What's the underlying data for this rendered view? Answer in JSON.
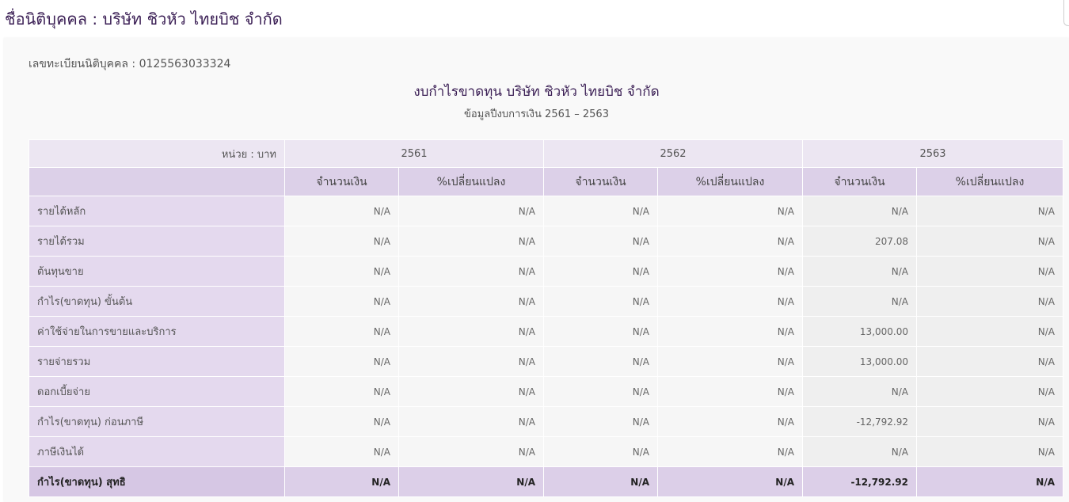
{
  "page_title": "ชื่อนิติบุคคล : บริษัท ชิวหัว ไทยบิช จำกัด",
  "registration": "เลขทะเบียนนิติบุคคล : 0125563033324",
  "report": {
    "title": "งบกำไรขาดทุน บริษัท ชิวหัว ไทยบิช จำกัด",
    "subtitle": "ข้อมูลปีงบการเงิน 2561 – 2563"
  },
  "table": {
    "unit_label": "หน่วย : บาท",
    "years": [
      "2561",
      "2562",
      "2563"
    ],
    "amount_label": "จำนวนเงิน",
    "change_label": "%เปลี่ยนแปลง",
    "rows": [
      {
        "label": "รายได้หลัก",
        "values": [
          "N/A",
          "N/A",
          "N/A",
          "N/A",
          "N/A",
          "N/A"
        ]
      },
      {
        "label": "รายได้รวม",
        "values": [
          "N/A",
          "N/A",
          "N/A",
          "N/A",
          "207.08",
          "N/A"
        ]
      },
      {
        "label": "ต้นทุนขาย",
        "values": [
          "N/A",
          "N/A",
          "N/A",
          "N/A",
          "N/A",
          "N/A"
        ]
      },
      {
        "label": "กำไร(ขาดทุน) ขั้นต้น",
        "values": [
          "N/A",
          "N/A",
          "N/A",
          "N/A",
          "N/A",
          "N/A"
        ]
      },
      {
        "label": "ค่าใช้จ่ายในการขายและบริการ",
        "values": [
          "N/A",
          "N/A",
          "N/A",
          "N/A",
          "13,000.00",
          "N/A"
        ]
      },
      {
        "label": "รายจ่ายรวม",
        "values": [
          "N/A",
          "N/A",
          "N/A",
          "N/A",
          "13,000.00",
          "N/A"
        ]
      },
      {
        "label": "ดอกเบี้ยจ่าย",
        "values": [
          "N/A",
          "N/A",
          "N/A",
          "N/A",
          "N/A",
          "N/A"
        ]
      },
      {
        "label": "กำไร(ขาดทุน) ก่อนภาษี",
        "values": [
          "N/A",
          "N/A",
          "N/A",
          "N/A",
          "-12,792.92",
          "N/A"
        ]
      },
      {
        "label": "ภาษีเงินได้",
        "values": [
          "N/A",
          "N/A",
          "N/A",
          "N/A",
          "N/A",
          "N/A"
        ]
      },
      {
        "label": "กำไร(ขาดทุน) สุทธิ",
        "values": [
          "N/A",
          "N/A",
          "N/A",
          "N/A",
          "-12,792.92",
          "N/A"
        ],
        "total": true
      }
    ]
  }
}
